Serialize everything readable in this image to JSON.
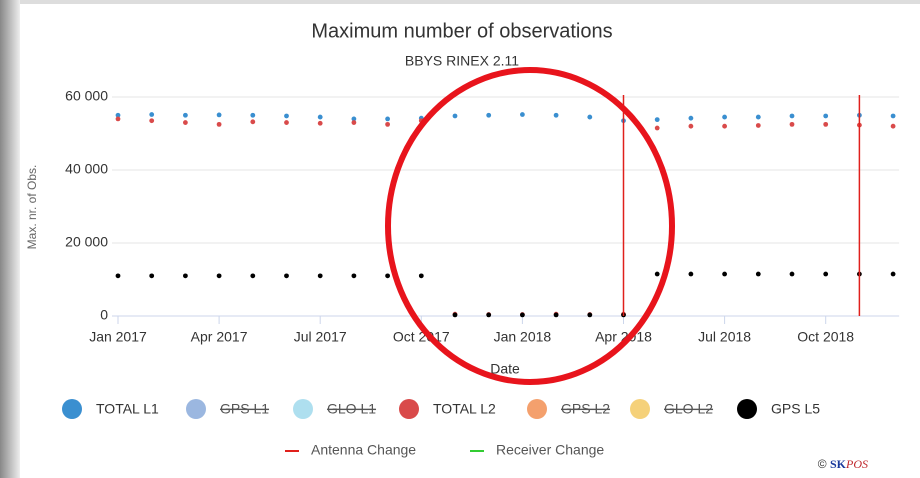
{
  "chart_data": {
    "type": "scatter",
    "title": "Maximum number of observations",
    "subtitle": "BBYS  RINEX 2.11",
    "x_label": "Date",
    "y_label": "Max. nr. of Obs.",
    "x": [
      "2017-01",
      "2017-02",
      "2017-03",
      "2017-04",
      "2017-05",
      "2017-06",
      "2017-07",
      "2017-08",
      "2017-09",
      "2017-10",
      "2017-11",
      "2017-12",
      "2018-01",
      "2018-02",
      "2018-03",
      "2018-04",
      "2018-05",
      "2018-06",
      "2018-07",
      "2018-08",
      "2018-09",
      "2018-10",
      "2018-11",
      "2018-12"
    ],
    "xlim": [
      "2017-01",
      "2018-12"
    ],
    "xticks": [
      {
        "value": "2017-01",
        "label": "Jan 2017"
      },
      {
        "value": "2017-04",
        "label": "Apr 2017"
      },
      {
        "value": "2017-07",
        "label": "Jul 2017"
      },
      {
        "value": "2017-10",
        "label": "Oct 2017"
      },
      {
        "value": "2018-01",
        "label": "Jan 2018"
      },
      {
        "value": "2018-04",
        "label": "Apr 2018"
      },
      {
        "value": "2018-07",
        "label": "Jul 2018"
      },
      {
        "value": "2018-10",
        "label": "Oct 2018"
      }
    ],
    "ylim": [
      0,
      60000
    ],
    "yticks": [
      0,
      {
        "value": 20000,
        "label": "20 000"
      },
      {
        "value": 40000,
        "label": "40 000"
      },
      {
        "value": 60000,
        "label": "60 000"
      }
    ],
    "grid": true,
    "series": [
      {
        "name": "TOTAL L1",
        "color": "#3a8fd0",
        "hidden": false,
        "values": [
          55000,
          55200,
          55000,
          55100,
          55000,
          54800,
          54500,
          54000,
          54000,
          54200,
          54800,
          55000,
          55200,
          55000,
          54500,
          53500,
          53800,
          54200,
          54500,
          54500,
          54800,
          54800,
          55000,
          54800
        ]
      },
      {
        "name": "GPS L1",
        "color": "#7a9fd6",
        "hidden": true,
        "values": [
          null,
          null,
          null,
          null,
          null,
          null,
          null,
          null,
          null,
          null,
          null,
          null,
          null,
          null,
          null,
          null,
          null,
          null,
          null,
          null,
          null,
          null,
          null,
          null
        ]
      },
      {
        "name": "GLO L1",
        "color": "#93d4ea",
        "hidden": true,
        "values": [
          null,
          null,
          null,
          null,
          null,
          null,
          null,
          null,
          null,
          null,
          null,
          null,
          null,
          null,
          null,
          null,
          null,
          null,
          null,
          null,
          null,
          null,
          null,
          null
        ]
      },
      {
        "name": "TOTAL L2",
        "color": "#d94a4a",
        "hidden": false,
        "values": [
          54000,
          53500,
          53000,
          52500,
          53200,
          53000,
          52800,
          53000,
          52500,
          53500,
          500,
          400,
          400,
          500,
          400,
          500,
          51500,
          52000,
          52000,
          52200,
          52500,
          52500,
          52300,
          52000
        ]
      },
      {
        "name": "GPS L2",
        "color": "#f0803c",
        "hidden": true,
        "values": [
          null,
          null,
          null,
          null,
          null,
          null,
          null,
          null,
          null,
          null,
          null,
          null,
          null,
          null,
          null,
          null,
          null,
          null,
          null,
          null,
          null,
          null,
          null,
          null
        ]
      },
      {
        "name": "GLO L2",
        "color": "#f2c14e",
        "hidden": true,
        "values": [
          null,
          null,
          null,
          null,
          null,
          null,
          null,
          null,
          null,
          null,
          null,
          null,
          null,
          null,
          null,
          null,
          null,
          null,
          null,
          null,
          null,
          null,
          null,
          null
        ]
      },
      {
        "name": "GPS L5",
        "color": "#000000",
        "hidden": false,
        "values": [
          11000,
          11000,
          11000,
          11000,
          11000,
          11000,
          11000,
          11000,
          11000,
          11000,
          300,
          300,
          300,
          300,
          300,
          300,
          11500,
          11500,
          11500,
          11500,
          11500,
          11500,
          11500,
          11500
        ]
      }
    ],
    "events": [
      {
        "name": "Antenna Change",
        "color": "#e0201c",
        "x": [
          "2018-04",
          "2018-11"
        ]
      },
      {
        "name": "Receiver Change",
        "color": "#33cc33",
        "x": []
      }
    ],
    "credit_prefix": "©",
    "credit_brand": "SK",
    "credit_rest": "POS"
  }
}
